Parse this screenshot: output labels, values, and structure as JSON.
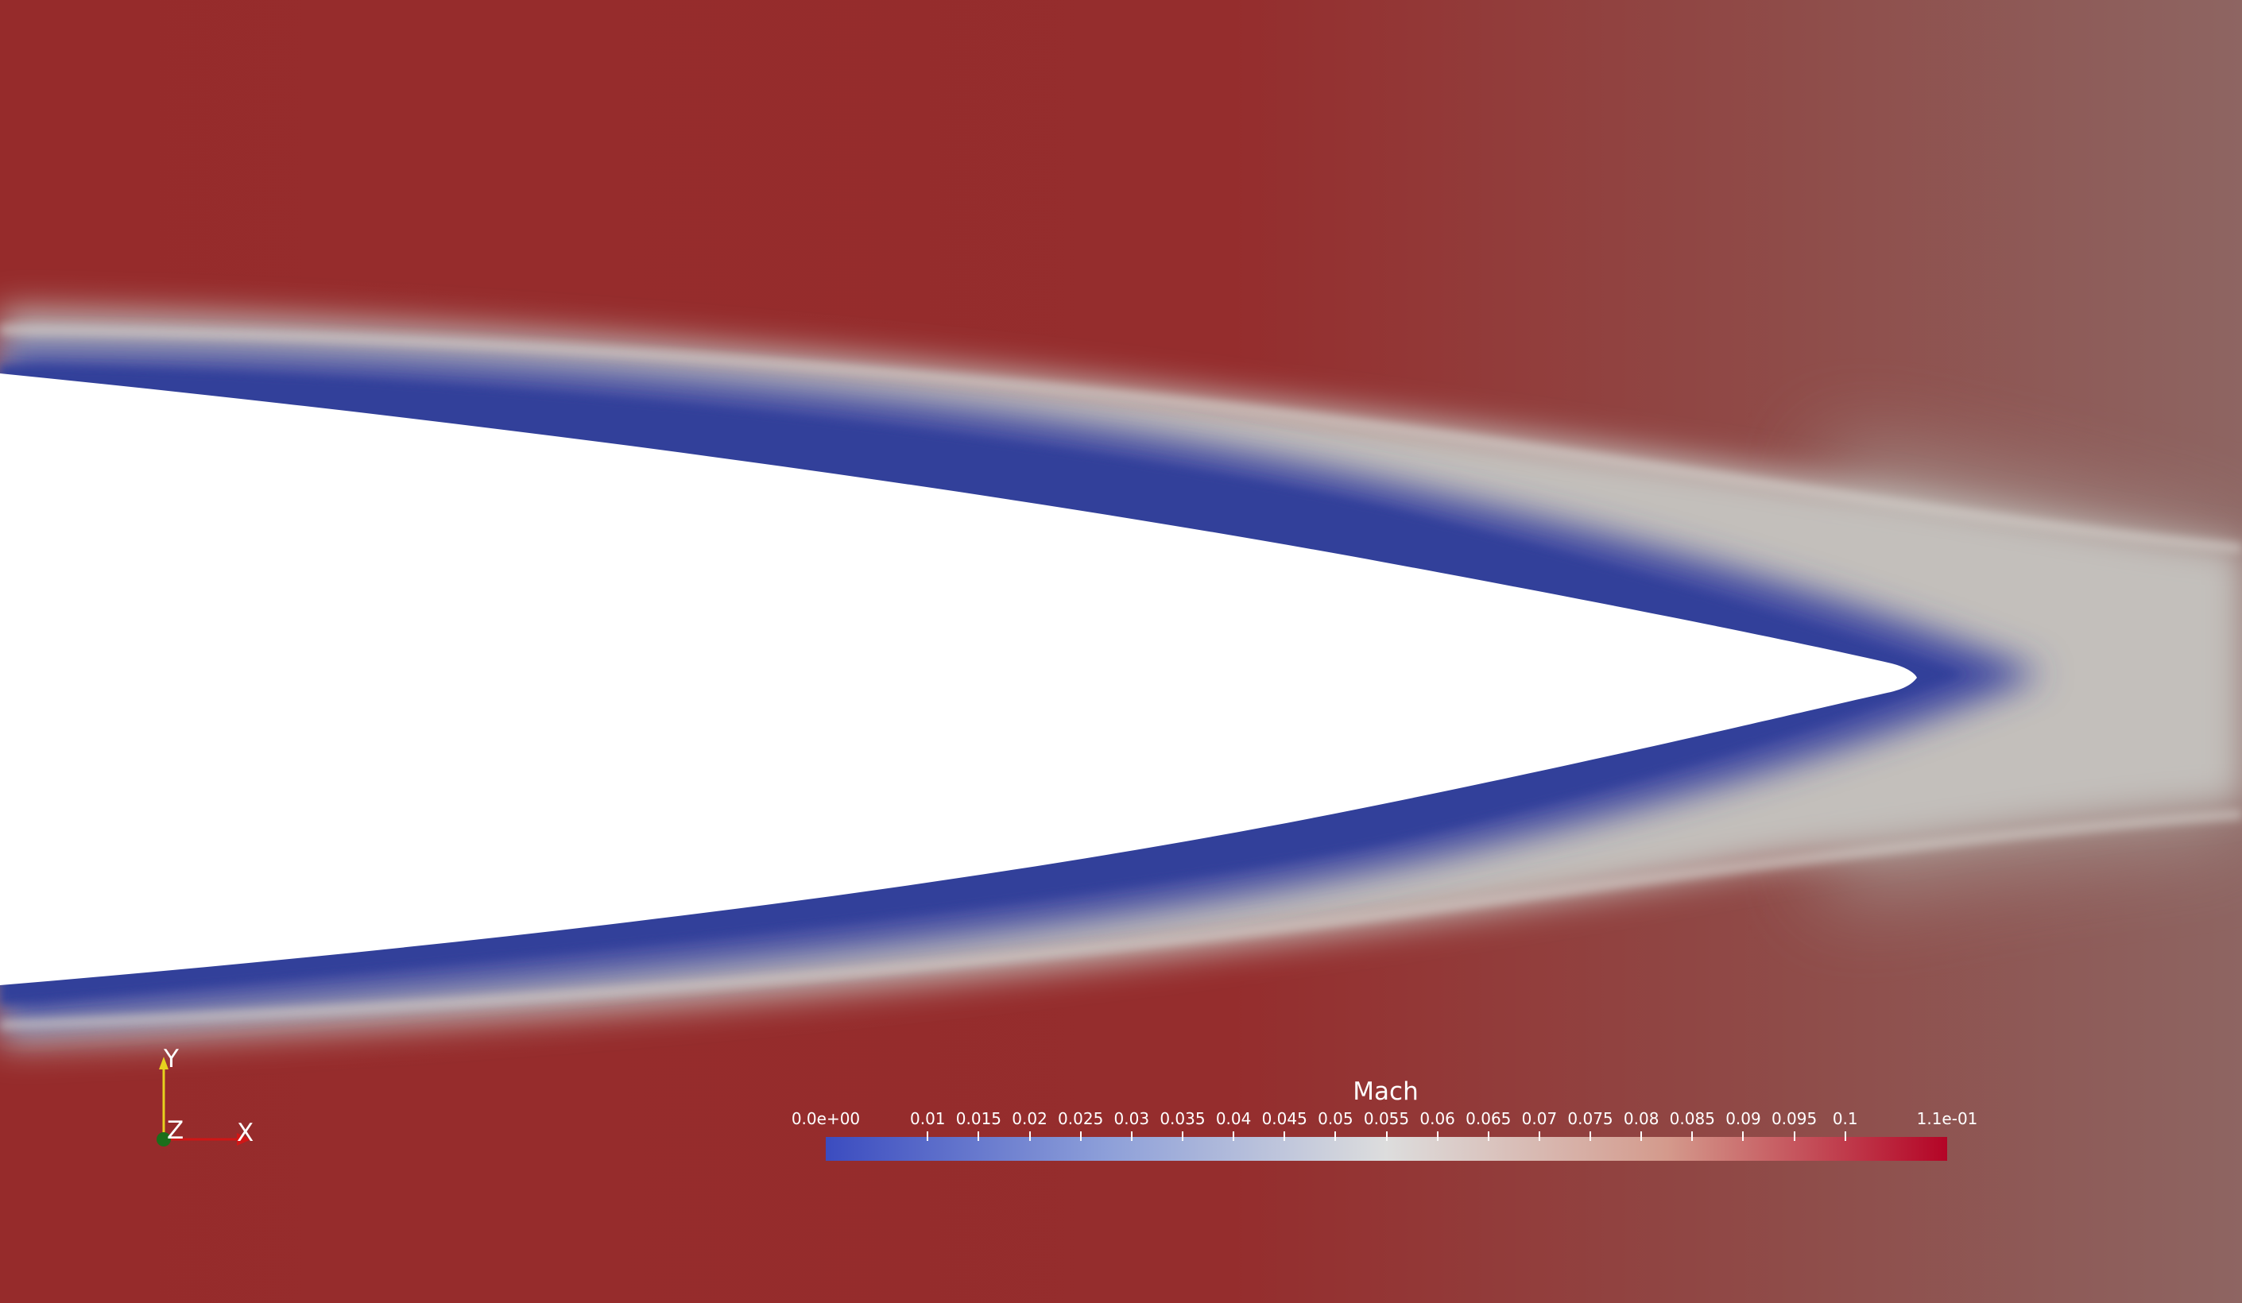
{
  "scene": {
    "colors": {
      "low": "#3b4cc0",
      "mid": "#dddddd",
      "high": "#b40426",
      "background_far_field": "#962b2b",
      "downstream": "#8c6460",
      "body_fill": "#ffffff"
    }
  },
  "colorbar": {
    "title": "Mach",
    "ticks": [
      {
        "label": "0.0e+00",
        "value": 0
      },
      {
        "label": "0.01",
        "value": 0.01
      },
      {
        "label": "0.015",
        "value": 0.015
      },
      {
        "label": "0.02",
        "value": 0.02
      },
      {
        "label": "0.025",
        "value": 0.025
      },
      {
        "label": "0.03",
        "value": 0.03
      },
      {
        "label": "0.035",
        "value": 0.035
      },
      {
        "label": "0.04",
        "value": 0.04
      },
      {
        "label": "0.045",
        "value": 0.045
      },
      {
        "label": "0.05",
        "value": 0.05
      },
      {
        "label": "0.055",
        "value": 0.055
      },
      {
        "label": "0.06",
        "value": 0.06
      },
      {
        "label": "0.065",
        "value": 0.065
      },
      {
        "label": "0.07",
        "value": 0.07
      },
      {
        "label": "0.075",
        "value": 0.075
      },
      {
        "label": "0.08",
        "value": 0.08
      },
      {
        "label": "0.085",
        "value": 0.085
      },
      {
        "label": "0.09",
        "value": 0.09
      },
      {
        "label": "0.095",
        "value": 0.095
      },
      {
        "label": "0.1",
        "value": 0.1
      },
      {
        "label": "1.1e-01",
        "value": 0.11
      }
    ],
    "range": [
      0,
      0.11
    ]
  },
  "orientation_axes": {
    "y_label": "Y",
    "z_label": "Z",
    "x_label": "X",
    "y_color": "#e6d21e",
    "x_color": "#d01616",
    "z_color": "#1b6e1b"
  }
}
